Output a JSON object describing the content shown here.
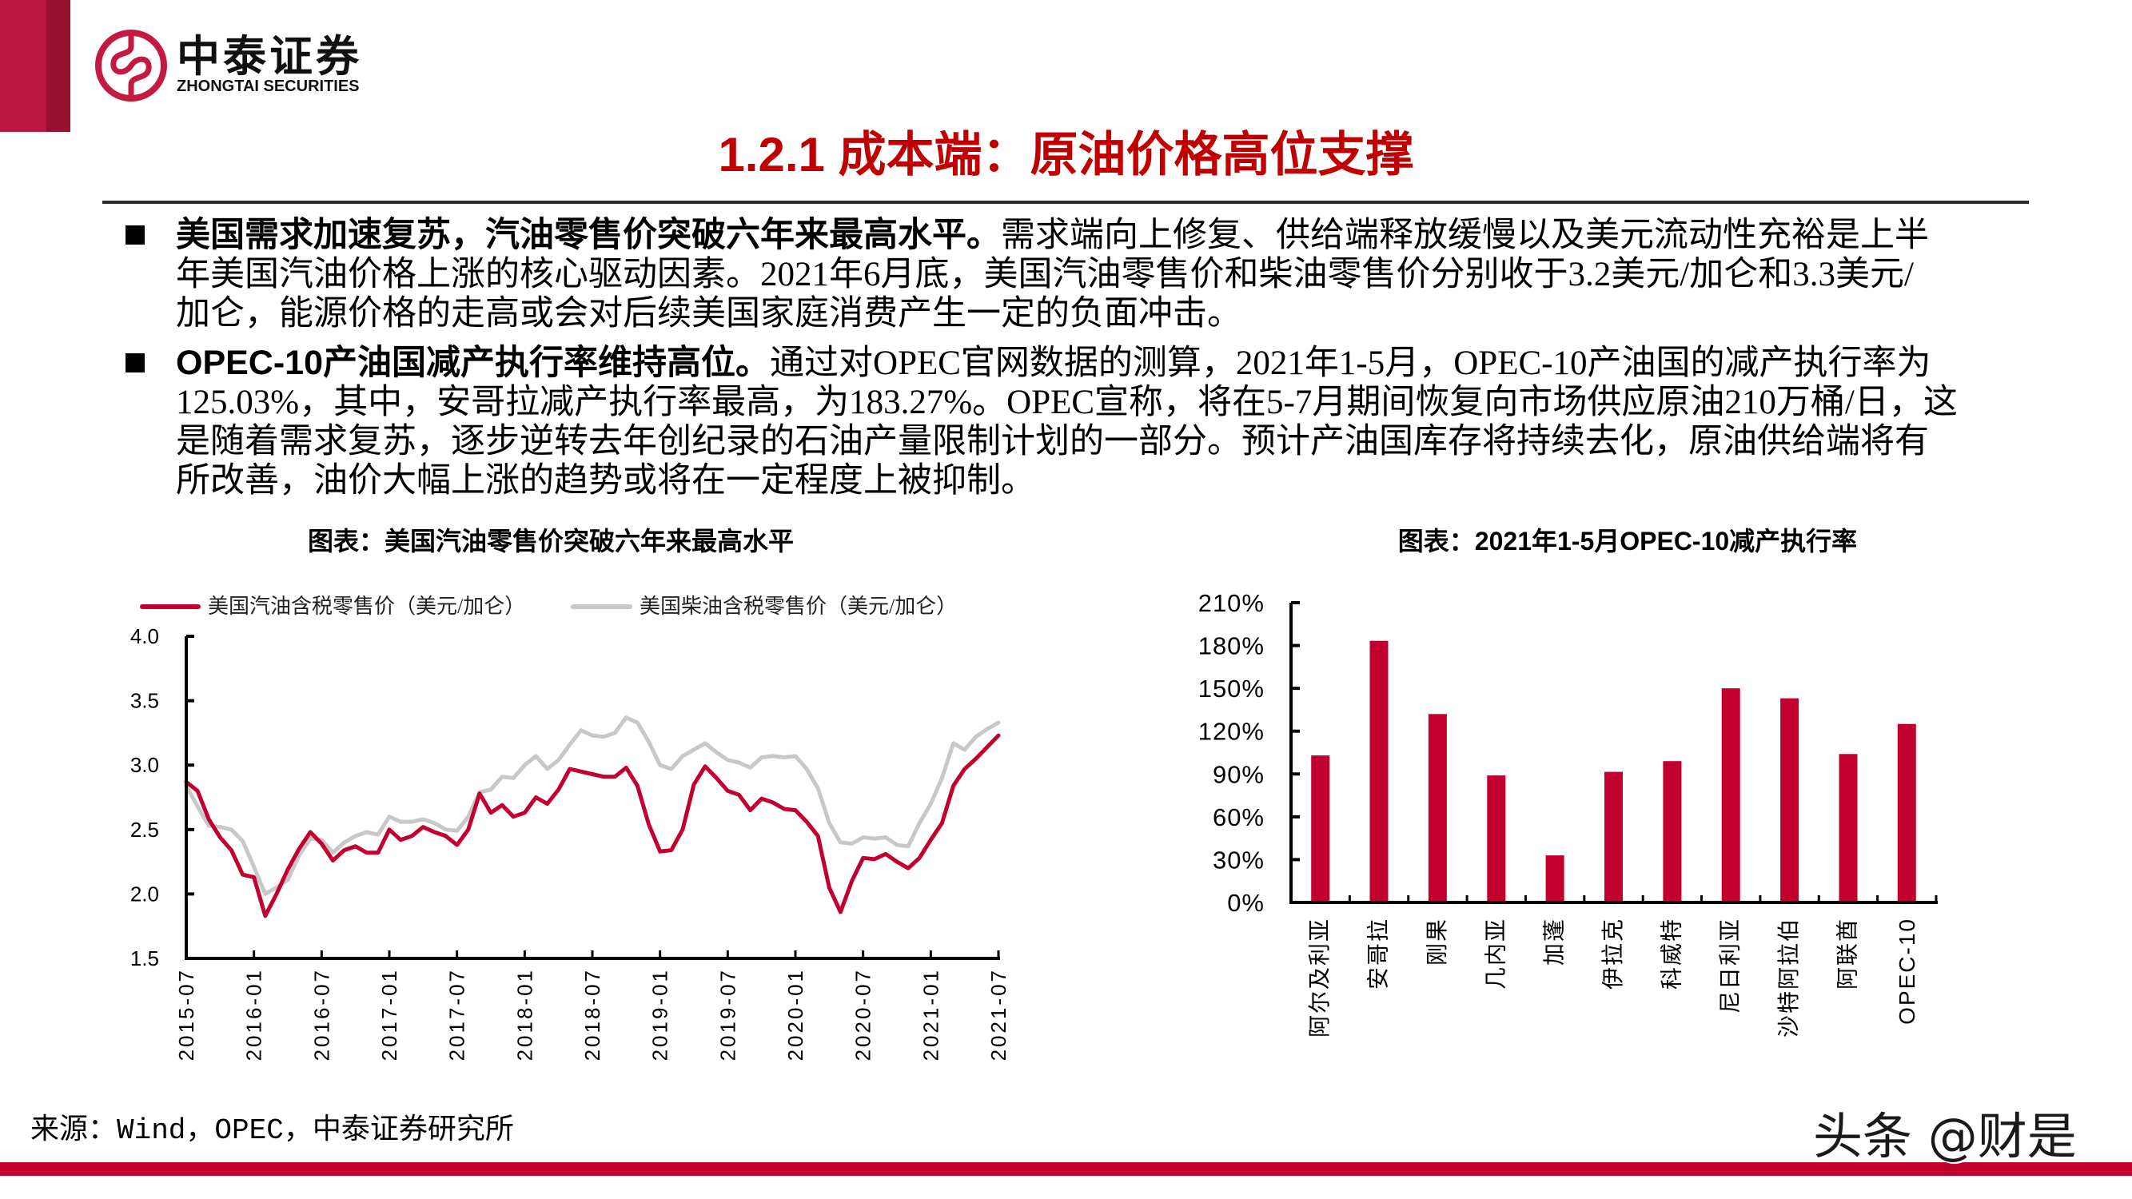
{
  "header": {
    "logo_cn": "中泰证券",
    "logo_en": "ZHONGTAI SECURITIES",
    "title": "1.2.1 成本端：原油价格高位支撑"
  },
  "bullets": [
    {
      "lead": "美国需求加速复苏，汽油零售价突破六年来最高水平。",
      "lines": [
        "需求端向上修复、供给端释放缓慢以及美元流动性充裕是上半",
        "年美国汽油价格上涨的核心驱动因素。2021年6月底，美国汽油零售价和柴油零售价分别收于3.2美元/加仑和3.3美元/",
        "加仑，能源价格的走高或会对后续美国家庭消费产生一定的负面冲击。"
      ]
    },
    {
      "lead": "OPEC-10产油国减产执行率维持高位。",
      "lines": [
        "通过对OPEC官网数据的测算，2021年1-5月，OPEC-10产油国的减产执行率为",
        "125.03%，其中，安哥拉减产执行率最高，为183.27%。OPEC宣称，将在5-7月期间恢复向市场供应原油210万桶/日，这",
        "是随着需求复苏，逐步逆转去年创纪录的石油产量限制计划的一部分。预计产油国库存将持续去化，原油供给端将有",
        "所改善，油价大幅上涨的趋势或将在一定程度上被抑制。"
      ]
    }
  ],
  "footer": {
    "source": "来源：Wind，OPEC，中泰证券研究所",
    "watermark": "头条 @财是"
  },
  "colors": {
    "brand_red": "#c1002f",
    "title_red": "#c00000",
    "diesel_gray": "#c8c8c8"
  },
  "chart_data": [
    {
      "type": "line",
      "title": "图表：美国汽油零售价突破六年来最高水平",
      "xlabel": "",
      "ylabel": "",
      "x_start": "2015-07",
      "x_end": "2021-07",
      "x_frequency": "monthly",
      "x_tick_labels": [
        "2015-07",
        "2016-01",
        "2016-07",
        "2017-01",
        "2017-07",
        "2018-01",
        "2018-07",
        "2019-01",
        "2019-07",
        "2020-01",
        "2020-07",
        "2021-01",
        "2021-07"
      ],
      "ylim": [
        1.5,
        4.0
      ],
      "y_ticks": [
        1.5,
        2.0,
        2.5,
        3.0,
        3.5,
        4.0
      ],
      "y_tick_labels": [
        "1.5",
        "2.0",
        "2.5",
        "3.0",
        "3.5",
        "4.0"
      ],
      "grid": false,
      "legend_position": "top",
      "series": [
        {
          "name": "美国汽油含税零售价（美元/加仑）",
          "color": "#c1002f",
          "values": [
            2.87,
            2.8,
            2.58,
            2.44,
            2.34,
            2.15,
            2.13,
            1.83,
            2.0,
            2.19,
            2.35,
            2.48,
            2.39,
            2.26,
            2.34,
            2.37,
            2.32,
            2.32,
            2.5,
            2.42,
            2.45,
            2.52,
            2.48,
            2.45,
            2.38,
            2.5,
            2.78,
            2.63,
            2.69,
            2.6,
            2.63,
            2.75,
            2.7,
            2.81,
            2.97,
            2.95,
            2.93,
            2.91,
            2.91,
            2.98,
            2.84,
            2.54,
            2.33,
            2.34,
            2.5,
            2.85,
            2.99,
            2.9,
            2.8,
            2.77,
            2.65,
            2.74,
            2.71,
            2.66,
            2.65,
            2.56,
            2.45,
            2.05,
            1.86,
            2.1,
            2.28,
            2.27,
            2.31,
            2.25,
            2.2,
            2.28,
            2.42,
            2.55,
            2.84,
            2.97,
            3.05,
            3.14,
            3.23
          ]
        },
        {
          "name": "美国柴油含税零售价（美元/加仑）",
          "color": "#c8c8c8",
          "values": [
            2.84,
            2.68,
            2.53,
            2.52,
            2.5,
            2.41,
            2.21,
            2.0,
            2.05,
            2.11,
            2.3,
            2.43,
            2.42,
            2.32,
            2.4,
            2.45,
            2.48,
            2.46,
            2.6,
            2.56,
            2.56,
            2.58,
            2.55,
            2.5,
            2.49,
            2.6,
            2.79,
            2.81,
            2.91,
            2.9,
            3.0,
            3.07,
            2.97,
            3.04,
            3.16,
            3.27,
            3.23,
            3.22,
            3.25,
            3.37,
            3.33,
            3.18,
            3.0,
            2.97,
            3.07,
            3.12,
            3.17,
            3.1,
            3.04,
            3.02,
            2.98,
            3.06,
            3.07,
            3.06,
            3.07,
            2.97,
            2.82,
            2.55,
            2.4,
            2.39,
            2.44,
            2.43,
            2.44,
            2.38,
            2.37,
            2.55,
            2.7,
            2.9,
            3.17,
            3.12,
            3.22,
            3.28,
            3.33
          ]
        }
      ]
    },
    {
      "type": "bar",
      "title": "图表：2021年1-5月OPEC-10减产执行率",
      "xlabel": "",
      "ylabel": "",
      "categories": [
        "阿尔及利亚",
        "安哥拉",
        "刚果",
        "几内亚",
        "加蓬",
        "伊拉克",
        "科威特",
        "尼日利亚",
        "沙特阿拉伯",
        "阿联酋",
        "OPEC-10"
      ],
      "values": [
        103,
        183.27,
        132,
        89,
        33,
        91.5,
        99,
        150,
        143,
        104,
        125.03
      ],
      "unit": "%",
      "color": "#c1002f",
      "ylim": [
        0,
        210
      ],
      "y_ticks": [
        0,
        30,
        60,
        90,
        120,
        150,
        180,
        210
      ],
      "y_tick_labels": [
        "0%",
        "30%",
        "60%",
        "90%",
        "120%",
        "150%",
        "180%",
        "210%"
      ],
      "grid": false
    }
  ]
}
